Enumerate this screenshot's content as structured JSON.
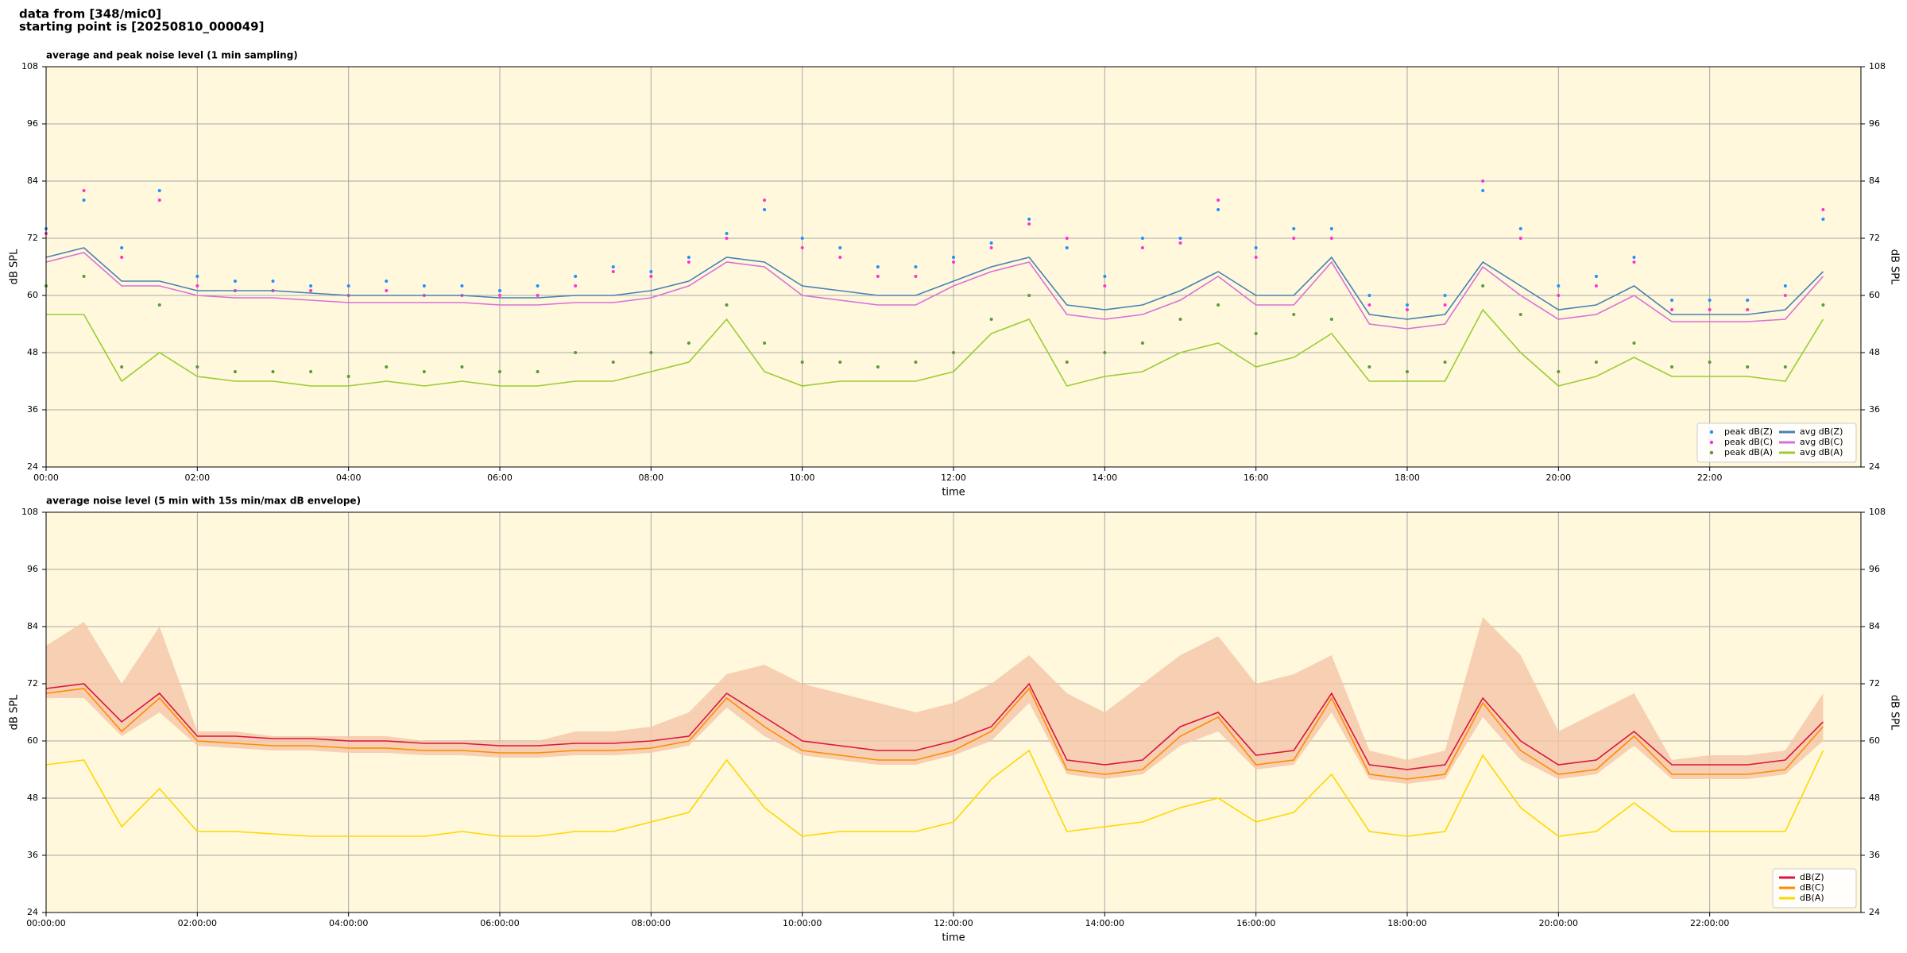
{
  "header": {
    "lines": [
      "data from [348/mic0]",
      "starting point is [20250810_000049]"
    ]
  },
  "chart_data": [
    {
      "type": "line",
      "title": "average and peak noise level (1 min sampling)",
      "x_label": "time",
      "y_label": "dB SPL",
      "x": [
        0,
        0.5,
        1,
        1.5,
        2,
        2.5,
        3,
        3.5,
        4,
        4.5,
        5,
        5.5,
        6,
        6.5,
        7,
        7.5,
        8,
        8.5,
        9,
        9.5,
        10,
        10.5,
        11,
        11.5,
        12,
        12.5,
        13,
        13.5,
        14,
        14.5,
        15,
        15.5,
        16,
        16.5,
        17,
        17.5,
        18,
        18.5,
        19,
        19.5,
        20,
        20.5,
        21,
        21.5,
        22,
        22.5,
        23,
        23.5
      ],
      "xlim": [
        0,
        24
      ],
      "xticks": [
        {
          "value": 0,
          "label": "00:00"
        },
        {
          "value": 2,
          "label": "02:00"
        },
        {
          "value": 4,
          "label": "04:00"
        },
        {
          "value": 6,
          "label": "06:00"
        },
        {
          "value": 8,
          "label": "08:00"
        },
        {
          "value": 10,
          "label": "10:00"
        },
        {
          "value": 12,
          "label": "12:00"
        },
        {
          "value": 14,
          "label": "14:00"
        },
        {
          "value": 16,
          "label": "16:00"
        },
        {
          "value": 18,
          "label": "18:00"
        },
        {
          "value": 20,
          "label": "20:00"
        },
        {
          "value": 22,
          "label": "22:00"
        }
      ],
      "ylim": [
        24,
        108
      ],
      "yticks": [
        24,
        36,
        48,
        60,
        72,
        84,
        96,
        108
      ],
      "grid": true,
      "legend": "lower right",
      "legend_columns": 2,
      "series": [
        {
          "name": "peak dB(Z)",
          "type": "scatter",
          "color": "#1e90ff",
          "values": [
            74,
            80,
            70,
            82,
            64,
            63,
            63,
            62,
            62,
            63,
            62,
            62,
            61,
            62,
            64,
            66,
            65,
            68,
            73,
            78,
            72,
            70,
            66,
            66,
            68,
            71,
            76,
            70,
            64,
            72,
            72,
            78,
            70,
            74,
            74,
            60,
            58,
            60,
            82,
            74,
            62,
            64,
            68,
            59,
            59,
            59,
            62,
            76
          ]
        },
        {
          "name": "peak dB(C)",
          "type": "scatter",
          "color": "#ff33cc",
          "values": [
            73,
            82,
            68,
            80,
            62,
            61,
            61,
            61,
            60,
            61,
            60,
            60,
            60,
            60,
            62,
            65,
            64,
            67,
            72,
            80,
            70,
            68,
            64,
            64,
            67,
            70,
            75,
            72,
            62,
            70,
            71,
            80,
            68,
            72,
            72,
            58,
            57,
            58,
            84,
            72,
            60,
            62,
            67,
            57,
            57,
            57,
            60,
            78
          ]
        },
        {
          "name": "peak dB(A)",
          "type": "scatter",
          "color": "#5a9a3a",
          "values": [
            62,
            64,
            45,
            58,
            45,
            44,
            44,
            44,
            43,
            45,
            44,
            45,
            44,
            44,
            48,
            46,
            48,
            50,
            58,
            50,
            46,
            46,
            45,
            46,
            48,
            55,
            60,
            46,
            48,
            50,
            55,
            58,
            52,
            56,
            55,
            45,
            44,
            46,
            62,
            56,
            44,
            46,
            50,
            45,
            46,
            45,
            45,
            58
          ]
        },
        {
          "name": "avg dB(Z)",
          "type": "line",
          "color": "#4682b4",
          "values": [
            68,
            70,
            63,
            63,
            61,
            61,
            61,
            60.5,
            60,
            60,
            60,
            60,
            59.5,
            59.5,
            60,
            60,
            61,
            63,
            68,
            67,
            62,
            61,
            60,
            60,
            63,
            66,
            68,
            58,
            57,
            58,
            61,
            65,
            60,
            60,
            68,
            56,
            55,
            56,
            67,
            62,
            57,
            58,
            62,
            56,
            56,
            56,
            57,
            65
          ]
        },
        {
          "name": "avg dB(C)",
          "type": "line",
          "color": "#da70d6",
          "values": [
            67,
            69,
            62,
            62,
            60,
            59.5,
            59.5,
            59,
            58.5,
            58.5,
            58.5,
            58.5,
            58,
            58,
            58.5,
            58.5,
            59.5,
            62,
            67,
            66,
            60,
            59,
            58,
            58,
            62,
            65,
            67,
            56,
            55,
            56,
            59,
            64,
            58,
            58,
            67,
            54,
            53,
            54,
            66,
            60,
            55,
            56,
            60,
            54.5,
            54.5,
            54.5,
            55,
            64
          ]
        },
        {
          "name": "avg dB(A)",
          "type": "line",
          "color": "#9acd32",
          "values": [
            56,
            56,
            42,
            48,
            43,
            42,
            42,
            41,
            41,
            42,
            41,
            42,
            41,
            41,
            42,
            42,
            44,
            46,
            55,
            44,
            41,
            42,
            42,
            42,
            44,
            52,
            55,
            41,
            43,
            44,
            48,
            50,
            45,
            47,
            52,
            42,
            42,
            42,
            57,
            48,
            41,
            43,
            47,
            43,
            43,
            43,
            42,
            55
          ]
        }
      ]
    },
    {
      "type": "line",
      "title": "average noise level (5 min with 15s min/max dB envelope)",
      "x_label": "time",
      "y_label": "dB SPL",
      "x": [
        0,
        0.5,
        1,
        1.5,
        2,
        2.5,
        3,
        3.5,
        4,
        4.5,
        5,
        5.5,
        6,
        6.5,
        7,
        7.5,
        8,
        8.5,
        9,
        9.5,
        10,
        10.5,
        11,
        11.5,
        12,
        12.5,
        13,
        13.5,
        14,
        14.5,
        15,
        15.5,
        16,
        16.5,
        17,
        17.5,
        18,
        18.5,
        19,
        19.5,
        20,
        20.5,
        21,
        21.5,
        22,
        22.5,
        23,
        23.5
      ],
      "xlim": [
        0,
        24
      ],
      "xticks": [
        {
          "value": 0,
          "label": "00:00:00"
        },
        {
          "value": 2,
          "label": "02:00:00"
        },
        {
          "value": 4,
          "label": "04:00:00"
        },
        {
          "value": 6,
          "label": "06:00:00"
        },
        {
          "value": 8,
          "label": "08:00:00"
        },
        {
          "value": 10,
          "label": "10:00:00"
        },
        {
          "value": 12,
          "label": "12:00:00"
        },
        {
          "value": 14,
          "label": "14:00:00"
        },
        {
          "value": 16,
          "label": "16:00:00"
        },
        {
          "value": 18,
          "label": "18:00:00"
        },
        {
          "value": 20,
          "label": "20:00:00"
        },
        {
          "value": 22,
          "label": "22:00:00"
        }
      ],
      "ylim": [
        24,
        108
      ],
      "yticks": [
        24,
        36,
        48,
        60,
        72,
        84,
        96,
        108
      ],
      "grid": true,
      "legend": "lower right",
      "legend_columns": 1,
      "envelope": {
        "color": "#f5c4a8",
        "max": [
          80,
          85,
          72,
          84,
          62,
          62,
          61,
          61,
          61,
          61,
          60,
          60,
          60,
          60,
          62,
          62,
          63,
          66,
          74,
          76,
          72,
          70,
          68,
          66,
          68,
          72,
          78,
          70,
          66,
          72,
          78,
          82,
          72,
          74,
          78,
          58,
          56,
          58,
          86,
          78,
          62,
          66,
          70,
          56,
          57,
          57,
          58,
          70
        ],
        "min": [
          69,
          69,
          61,
          66,
          59,
          58.5,
          58,
          58,
          57.5,
          57.5,
          57,
          57,
          56.5,
          56.5,
          57,
          57,
          57.5,
          59,
          67,
          61,
          57,
          56,
          55,
          55,
          57,
          60,
          68,
          53,
          52,
          53,
          59,
          62,
          54,
          55,
          66,
          52,
          51,
          52,
          65,
          56,
          52,
          53,
          59,
          52,
          52,
          52,
          53,
          60
        ]
      },
      "series": [
        {
          "name": "dB(Z)",
          "type": "line",
          "color": "#dc143c",
          "values": [
            71,
            72,
            64,
            70,
            61,
            61,
            60.5,
            60.5,
            60,
            60,
            59.5,
            59.5,
            59,
            59,
            59.5,
            59.5,
            60,
            61,
            70,
            65,
            60,
            59,
            58,
            58,
            60,
            63,
            72,
            56,
            55,
            56,
            63,
            66,
            57,
            58,
            70,
            55,
            54,
            55,
            69,
            60,
            55,
            56,
            62,
            55,
            55,
            55,
            56,
            64
          ]
        },
        {
          "name": "dB(C)",
          "type": "line",
          "color": "#ff8c00",
          "values": [
            70,
            71,
            62,
            69,
            60,
            59.5,
            59,
            59,
            58.5,
            58.5,
            58,
            58,
            57.5,
            57.5,
            58,
            58,
            58.5,
            60,
            69,
            63,
            58,
            57,
            56,
            56,
            58,
            62,
            71,
            54,
            53,
            54,
            61,
            65,
            55,
            56,
            69,
            53,
            52,
            53,
            68,
            58,
            53,
            54,
            61,
            53,
            53,
            53,
            54,
            63
          ]
        },
        {
          "name": "dB(A)",
          "type": "line",
          "color": "#ffd700",
          "values": [
            55,
            56,
            42,
            50,
            41,
            41,
            40.5,
            40,
            40,
            40,
            40,
            41,
            40,
            40,
            41,
            41,
            43,
            45,
            56,
            46,
            40,
            41,
            41,
            41,
            43,
            52,
            58,
            41,
            42,
            43,
            46,
            48,
            43,
            45,
            53,
            41,
            40,
            41,
            57,
            46,
            40,
            41,
            47,
            41,
            41,
            41,
            41,
            58
          ]
        }
      ]
    }
  ]
}
